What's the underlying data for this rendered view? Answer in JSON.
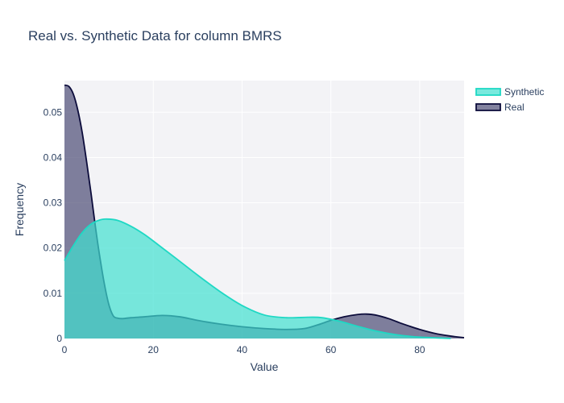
{
  "chart_data": {
    "type": "area",
    "title": "Real vs. Synthetic Data for column BMRS",
    "xlabel": "Value",
    "ylabel": "Frequency",
    "xlim": [
      0,
      90
    ],
    "ylim": [
      0,
      0.057
    ],
    "x_ticks": [
      0,
      20,
      40,
      60,
      80
    ],
    "y_ticks": [
      0,
      0.01,
      0.02,
      0.03,
      0.04,
      0.05
    ],
    "y_tick_labels": [
      "0",
      "0.01",
      "0.02",
      "0.03",
      "0.04",
      "0.05"
    ],
    "grid": true,
    "legend_position": "top-right",
    "series": [
      {
        "name": "Synthetic",
        "color": "#40e0d0",
        "line_color": "#1fd8c4",
        "fill_opacity": 0.7,
        "x": [
          0,
          2,
          4,
          6,
          8,
          9.5,
          12,
          15,
          18,
          21,
          25,
          30,
          35,
          40,
          45,
          50,
          55,
          58,
          62,
          66,
          70,
          75,
          80,
          85,
          87
        ],
        "y": [
          0.0172,
          0.0205,
          0.0234,
          0.0253,
          0.0262,
          0.0264,
          0.0261,
          0.0248,
          0.023,
          0.0208,
          0.0178,
          0.014,
          0.0104,
          0.0073,
          0.0052,
          0.0046,
          0.0047,
          0.0046,
          0.0038,
          0.0027,
          0.0017,
          0.0008,
          0.0003,
          0.0001,
          0.0
        ]
      },
      {
        "name": "Real",
        "color": "#3f3f6b",
        "line_color": "#0c0c3b",
        "fill_opacity": 0.65,
        "x": [
          0,
          1,
          2,
          3,
          4,
          5,
          6,
          7,
          8,
          9,
          10,
          11,
          12,
          13,
          15,
          18,
          22,
          26,
          30,
          35,
          40,
          45,
          50,
          54,
          57,
          60,
          63,
          66,
          68,
          70,
          73,
          76,
          80,
          84,
          88,
          90
        ],
        "y": [
          0.056,
          0.0557,
          0.054,
          0.0505,
          0.0455,
          0.039,
          0.032,
          0.0245,
          0.0178,
          0.012,
          0.0075,
          0.005,
          0.0045,
          0.0044,
          0.0046,
          0.0048,
          0.0051,
          0.0048,
          0.004,
          0.0032,
          0.0026,
          0.0022,
          0.002,
          0.0022,
          0.003,
          0.004,
          0.0048,
          0.0053,
          0.0054,
          0.0052,
          0.0044,
          0.0033,
          0.002,
          0.001,
          0.0004,
          0.0002
        ]
      }
    ]
  }
}
